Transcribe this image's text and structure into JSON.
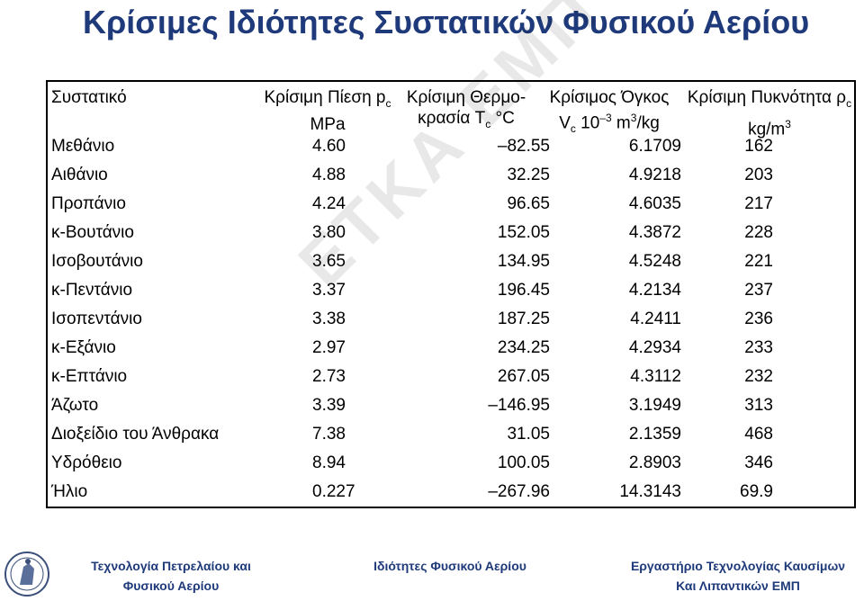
{
  "title": "Κρίσιμες Ιδιότητες Συστατικών Φυσικού Αερίου",
  "watermark": "ΕΤΚΑ ΕΜΠ",
  "table": {
    "headers": {
      "component": "Συστατικό",
      "pressure_l1": "Κρίσιμη Πίεση p",
      "pressure_sub": "c",
      "pressure_l2": "MPa",
      "temp_l1": "Κρίσιμη Θερμο-",
      "temp_l2a": "κρασία T",
      "temp_sub": "c",
      "temp_l2b": " °C",
      "vol_l1": "Κρίσιμος Όγκος",
      "vol_l2a": "V",
      "vol_sub": "c",
      "vol_l2b": " 10",
      "vol_sup1": "–3",
      "vol_l2c": " m",
      "vol_sup2": "3",
      "vol_l2d": "/kg",
      "dens_l1": "Κρίσιμη Πυκνότητα ρ",
      "dens_sub": "c",
      "dens_l2a": "kg/m",
      "dens_sup": "3"
    },
    "rows": [
      {
        "name": "Μεθάνιο",
        "p": "4.60",
        "t": "–82.55",
        "v": "6.1709",
        "d": "162"
      },
      {
        "name": "Αιθάνιο",
        "p": "4.88",
        "t": "32.25",
        "v": "4.9218",
        "d": "203"
      },
      {
        "name": "Προπάνιο",
        "p": "4.24",
        "t": "96.65",
        "v": "4.6035",
        "d": "217"
      },
      {
        "name": "κ-Βουτάνιο",
        "p": "3.80",
        "t": "152.05",
        "v": "4.3872",
        "d": "228"
      },
      {
        "name": "Ισοβουτάνιο",
        "p": "3.65",
        "t": "134.95",
        "v": "4.5248",
        "d": "221"
      },
      {
        "name": "κ-Πεντάνιο",
        "p": "3.37",
        "t": "196.45",
        "v": "4.2134",
        "d": "237"
      },
      {
        "name": "Ισοπεντάνιο",
        "p": "3.38",
        "t": "187.25",
        "v": "4.2411",
        "d": "236"
      },
      {
        "name": "κ-Εξάνιο",
        "p": "2.97",
        "t": "234.25",
        "v": "4.2934",
        "d": "233"
      },
      {
        "name": "κ-Επτάνιο",
        "p": "2.73",
        "t": "267.05",
        "v": "4.3112",
        "d": "232"
      },
      {
        "name": "Άζωτο",
        "p": "3.39",
        "t": "–146.95",
        "v": "3.1949",
        "d": "313"
      },
      {
        "name": "Διοξείδιο του Άνθρακα",
        "p": "7.38",
        "t": "31.05",
        "v": "2.1359",
        "d": "468"
      },
      {
        "name": "Υδρόθειο",
        "p": "8.94",
        "t": "100.05",
        "v": "2.8903",
        "d": "346"
      },
      {
        "name": "Ήλιο",
        "p": "0.227",
        "t": "–267.96",
        "v": "14.3143",
        "d": "69.9"
      }
    ]
  },
  "footer": {
    "left_l1": "Τεχνολογία Πετρελαίου και",
    "left_l2": "Φυσικού Αερίου",
    "center": "Ιδιότητες Φυσικού Αερίου",
    "right_l1": "Εργαστήριο Τεχνολογίας Καυσίμων",
    "right_l2": "Και Λιπαντικών ΕΜΠ"
  }
}
